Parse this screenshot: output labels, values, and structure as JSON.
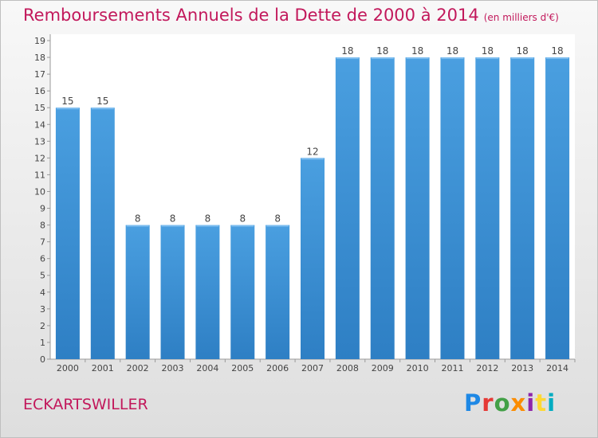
{
  "page": {
    "title": "Remboursements Annuels de la Dette de 2000 à 2014",
    "subtitle": "(en milliers d'€)",
    "location": "ECKARTSWILLER",
    "logo": "Proxiti",
    "logo_colors": [
      "#1e88e5",
      "#e53935",
      "#43a047",
      "#fb8c00",
      "#8e24aa",
      "#fdd835",
      "#00acc1"
    ]
  },
  "chart_data": {
    "type": "bar",
    "categories": [
      "2000",
      "2001",
      "2002",
      "2003",
      "2004",
      "2005",
      "2006",
      "2007",
      "2008",
      "2009",
      "2010",
      "2011",
      "2012",
      "2013",
      "2014"
    ],
    "values": [
      15,
      15,
      8,
      8,
      8,
      8,
      8,
      12,
      18,
      18,
      18,
      18,
      18,
      18,
      18
    ],
    "data_labels": [
      "15",
      "15",
      "8",
      "8",
      "8",
      "8",
      "8",
      "12",
      "18",
      "18",
      "18",
      "18",
      "18",
      "18",
      "18"
    ],
    "yticks": [
      "0",
      "1",
      "2",
      "3",
      "4",
      "5",
      "6",
      "7",
      "8",
      "9",
      "10",
      "11",
      "12",
      "13",
      "14",
      "15",
      "16",
      "17",
      "18",
      "19"
    ],
    "ylim": [
      0,
      19
    ],
    "grid": false,
    "bar_color": "#4a9fe0",
    "bar_color_dark": "#2e7fc4",
    "title_color": "#c2185b"
  }
}
